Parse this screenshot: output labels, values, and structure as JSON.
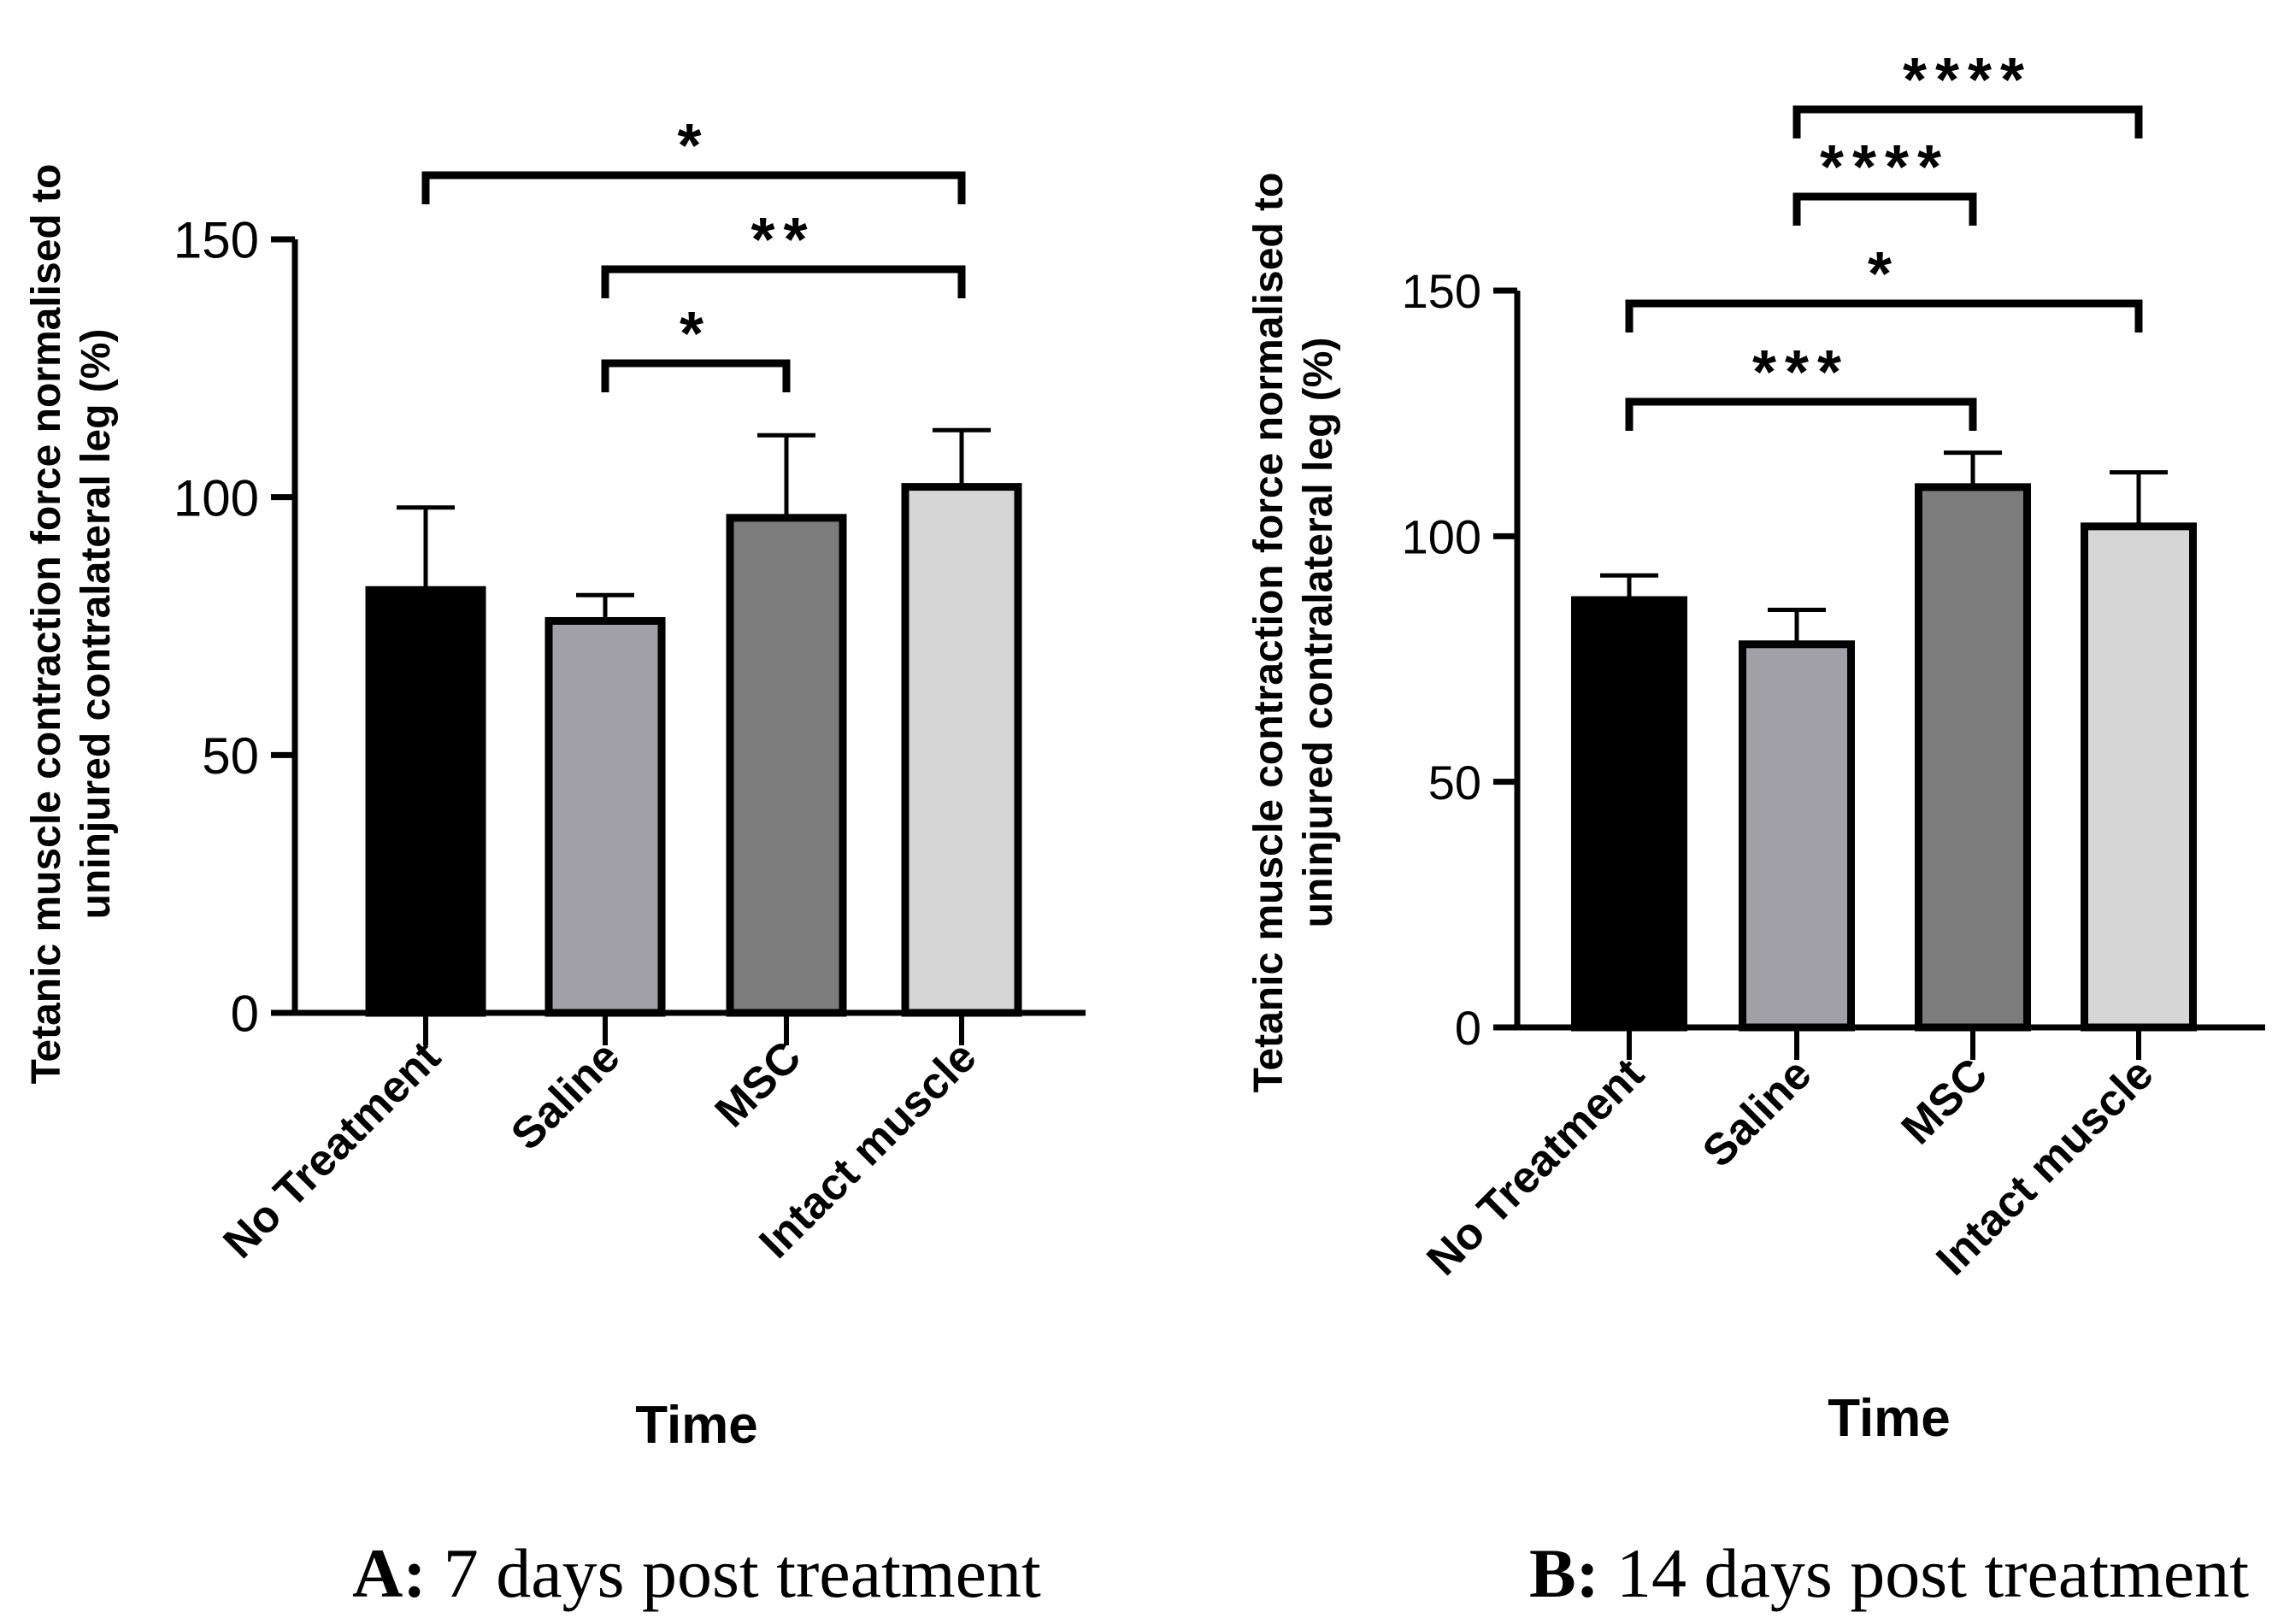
{
  "colors": {
    "no_treatment": "#000000",
    "saline": "#a0a0a6",
    "msc": "#7c7c7c",
    "intact_muscle": "#d6d6d6",
    "axis": "#000000"
  },
  "chart_data": [
    {
      "type": "bar",
      "panel_prefix": "A:",
      "caption": "7 days post treatment",
      "xlabel": "Time",
      "ylabel_line1": "Tetanic muscle contraction force normalised to",
      "ylabel_line2": "uninjured contralateral leg (%)",
      "ylim": [
        0,
        150
      ],
      "yticks": [
        "0",
        "50",
        "100",
        "150"
      ],
      "categories": [
        "No Treatment",
        "Saline",
        "MSC",
        "Intact muscle"
      ],
      "values": [
        82,
        76,
        96,
        102
      ],
      "error_upper": [
        98,
        81,
        112,
        113
      ],
      "significance": [
        {
          "from": 1,
          "to": 2,
          "stars": "*"
        },
        {
          "from": 1,
          "to": 3,
          "stars": "**"
        },
        {
          "from": 0,
          "to": 3,
          "stars": "*"
        }
      ]
    },
    {
      "type": "bar",
      "panel_prefix": "B:",
      "caption": "14 days post treatment",
      "xlabel": "Time",
      "ylabel_line1": "Tetanic muscle contraction force normalised to",
      "ylabel_line2": "uninjured contralateral leg (%)",
      "ylim": [
        0,
        150
      ],
      "yticks": [
        "0",
        "50",
        "100",
        "150"
      ],
      "categories": [
        "No Treatment",
        "Saline",
        "MSC",
        "Intact muscle"
      ],
      "values": [
        87,
        78,
        110,
        102
      ],
      "error_upper": [
        92,
        85,
        117,
        113
      ],
      "significance": [
        {
          "from": 0,
          "to": 2,
          "stars": "***"
        },
        {
          "from": 0,
          "to": 3,
          "stars": "*"
        },
        {
          "from": 1,
          "to": 2,
          "stars": "****"
        },
        {
          "from": 1,
          "to": 3,
          "stars": "****"
        }
      ]
    }
  ]
}
